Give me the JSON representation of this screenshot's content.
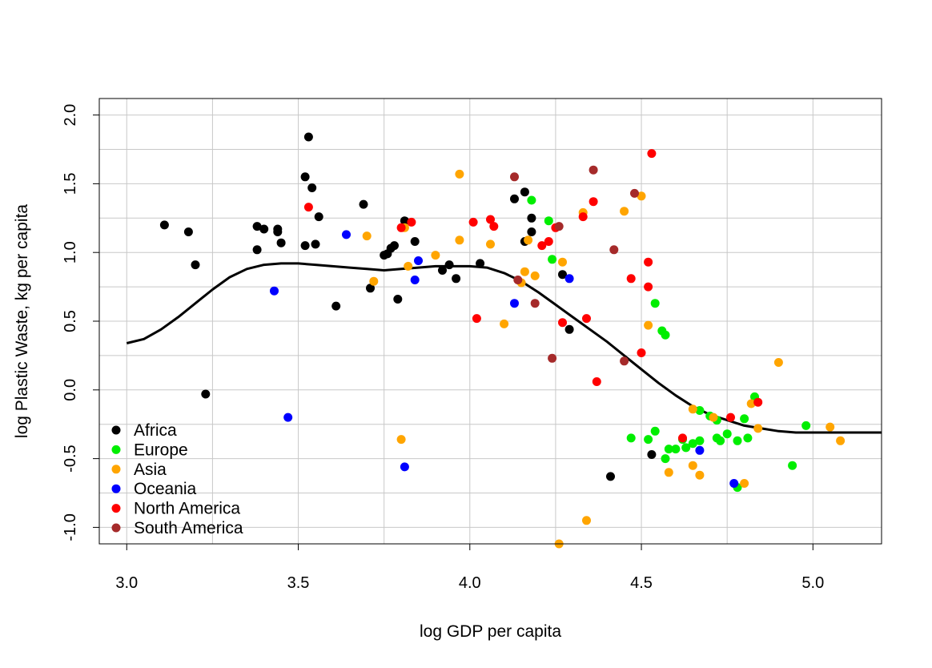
{
  "chart_data": {
    "type": "scatter",
    "title": "",
    "xlabel": "log GDP per capita",
    "ylabel": "log Plastic Waste, kg per capita",
    "xlim": [
      2.92,
      5.2
    ],
    "ylim": [
      -1.12,
      2.12
    ],
    "x_ticks": [
      "3.0",
      "3.5",
      "4.0",
      "4.5",
      "5.0"
    ],
    "y_ticks": [
      "-1.0",
      "-0.5",
      "0.0",
      "0.5",
      "1.0",
      "1.5",
      "2.0"
    ],
    "grid": true,
    "legend_position": "bottom-left",
    "series": [
      {
        "name": "Africa",
        "color": "#000000",
        "points": [
          [
            3.11,
            1.2
          ],
          [
            3.18,
            1.15
          ],
          [
            3.2,
            0.91
          ],
          [
            3.23,
            -0.03
          ],
          [
            3.38,
            1.19
          ],
          [
            3.38,
            1.02
          ],
          [
            3.4,
            1.17
          ],
          [
            3.44,
            1.17
          ],
          [
            3.44,
            1.15
          ],
          [
            3.45,
            1.07
          ],
          [
            3.52,
            1.55
          ],
          [
            3.52,
            1.05
          ],
          [
            3.53,
            1.84
          ],
          [
            3.54,
            1.47
          ],
          [
            3.55,
            1.06
          ],
          [
            3.56,
            1.26
          ],
          [
            3.61,
            0.61
          ],
          [
            3.69,
            1.35
          ],
          [
            3.71,
            0.74
          ],
          [
            3.75,
            0.98
          ],
          [
            3.76,
            0.99
          ],
          [
            3.77,
            1.03
          ],
          [
            3.78,
            1.05
          ],
          [
            3.79,
            0.66
          ],
          [
            3.81,
            1.23
          ],
          [
            3.84,
            1.08
          ],
          [
            3.92,
            0.87
          ],
          [
            3.94,
            0.91
          ],
          [
            3.96,
            0.81
          ],
          [
            4.03,
            0.92
          ],
          [
            4.13,
            1.39
          ],
          [
            4.16,
            1.44
          ],
          [
            4.16,
            1.08
          ],
          [
            4.18,
            1.25
          ],
          [
            4.18,
            1.15
          ],
          [
            4.27,
            0.84
          ],
          [
            4.29,
            0.44
          ],
          [
            4.41,
            -0.63
          ],
          [
            4.53,
            -0.47
          ]
        ]
      },
      {
        "name": "Europe",
        "color": "#00ee00",
        "points": [
          [
            4.18,
            1.38
          ],
          [
            4.23,
            1.23
          ],
          [
            4.24,
            0.95
          ],
          [
            4.47,
            -0.35
          ],
          [
            4.52,
            -0.36
          ],
          [
            4.54,
            -0.3
          ],
          [
            4.54,
            0.63
          ],
          [
            4.56,
            0.43
          ],
          [
            4.57,
            0.4
          ],
          [
            4.57,
            -0.5
          ],
          [
            4.58,
            -0.43
          ],
          [
            4.6,
            -0.43
          ],
          [
            4.62,
            -0.36
          ],
          [
            4.63,
            -0.42
          ],
          [
            4.65,
            -0.39
          ],
          [
            4.67,
            -0.15
          ],
          [
            4.67,
            -0.37
          ],
          [
            4.7,
            -0.19
          ],
          [
            4.72,
            -0.35
          ],
          [
            4.72,
            -0.22
          ],
          [
            4.73,
            -0.37
          ],
          [
            4.75,
            -0.32
          ],
          [
            4.78,
            -0.37
          ],
          [
            4.78,
            -0.71
          ],
          [
            4.8,
            -0.21
          ],
          [
            4.81,
            -0.35
          ],
          [
            4.83,
            -0.05
          ],
          [
            4.94,
            -0.55
          ],
          [
            4.98,
            -0.26
          ]
        ]
      },
      {
        "name": "Asia",
        "color": "#ffa500",
        "points": [
          [
            3.7,
            1.12
          ],
          [
            3.72,
            0.79
          ],
          [
            3.8,
            -0.36
          ],
          [
            3.81,
            1.18
          ],
          [
            3.82,
            0.9
          ],
          [
            3.9,
            0.98
          ],
          [
            3.97,
            1.09
          ],
          [
            3.97,
            1.57
          ],
          [
            4.06,
            1.06
          ],
          [
            4.1,
            0.48
          ],
          [
            4.15,
            0.78
          ],
          [
            4.16,
            0.86
          ],
          [
            4.17,
            1.09
          ],
          [
            4.19,
            0.83
          ],
          [
            4.26,
            -1.12
          ],
          [
            4.27,
            0.93
          ],
          [
            4.33,
            1.29
          ],
          [
            4.34,
            -0.95
          ],
          [
            4.45,
            1.3
          ],
          [
            4.5,
            1.41
          ],
          [
            4.52,
            0.47
          ],
          [
            4.65,
            -0.14
          ],
          [
            4.65,
            -0.55
          ],
          [
            4.67,
            -0.62
          ],
          [
            4.71,
            -0.2
          ],
          [
            4.8,
            -0.68
          ],
          [
            4.82,
            -0.1
          ],
          [
            4.84,
            -0.28
          ],
          [
            4.9,
            0.2
          ],
          [
            5.05,
            -0.27
          ],
          [
            5.08,
            -0.37
          ],
          [
            4.58,
            -0.6
          ]
        ]
      },
      {
        "name": "Oceania",
        "color": "#0000ff",
        "points": [
          [
            3.43,
            0.72
          ],
          [
            3.47,
            -0.2
          ],
          [
            3.64,
            1.13
          ],
          [
            3.81,
            -0.56
          ],
          [
            3.84,
            0.8
          ],
          [
            3.85,
            0.94
          ],
          [
            4.13,
            0.63
          ],
          [
            4.29,
            0.81
          ],
          [
            4.67,
            -0.44
          ],
          [
            4.77,
            -0.68
          ]
        ]
      },
      {
        "name": "North America",
        "color": "#ff0000",
        "points": [
          [
            3.53,
            1.33
          ],
          [
            3.8,
            1.18
          ],
          [
            3.83,
            1.22
          ],
          [
            4.01,
            1.22
          ],
          [
            4.02,
            0.52
          ],
          [
            4.06,
            1.24
          ],
          [
            4.07,
            1.19
          ],
          [
            4.21,
            1.05
          ],
          [
            4.23,
            1.08
          ],
          [
            4.25,
            1.18
          ],
          [
            4.27,
            0.49
          ],
          [
            4.33,
            1.26
          ],
          [
            4.34,
            0.52
          ],
          [
            4.36,
            1.37
          ],
          [
            4.37,
            0.06
          ],
          [
            4.47,
            0.81
          ],
          [
            4.5,
            0.27
          ],
          [
            4.52,
            0.93
          ],
          [
            4.52,
            0.75
          ],
          [
            4.53,
            1.72
          ],
          [
            4.62,
            -0.35
          ],
          [
            4.76,
            -0.2
          ],
          [
            4.84,
            -0.09
          ]
        ]
      },
      {
        "name": "South America",
        "color": "#a52a2a",
        "points": [
          [
            4.13,
            1.55
          ],
          [
            4.14,
            0.8
          ],
          [
            4.19,
            0.63
          ],
          [
            4.24,
            0.23
          ],
          [
            4.26,
            1.19
          ],
          [
            4.36,
            1.6
          ],
          [
            4.42,
            1.02
          ],
          [
            4.45,
            0.21
          ],
          [
            4.48,
            1.43
          ]
        ]
      }
    ],
    "smooth_line": {
      "name": "smoother",
      "color": "#000000",
      "x": [
        3.0,
        3.05,
        3.1,
        3.15,
        3.2,
        3.25,
        3.3,
        3.35,
        3.4,
        3.45,
        3.5,
        3.55,
        3.6,
        3.65,
        3.7,
        3.75,
        3.8,
        3.85,
        3.9,
        3.95,
        4.0,
        4.05,
        4.1,
        4.15,
        4.2,
        4.25,
        4.3,
        4.35,
        4.4,
        4.45,
        4.5,
        4.55,
        4.6,
        4.65,
        4.7,
        4.75,
        4.8,
        4.85,
        4.9,
        4.95,
        5.0,
        5.05,
        5.1,
        5.15,
        5.2
      ],
      "y": [
        0.34,
        0.37,
        0.44,
        0.53,
        0.63,
        0.73,
        0.82,
        0.88,
        0.91,
        0.92,
        0.92,
        0.91,
        0.9,
        0.89,
        0.88,
        0.87,
        0.88,
        0.89,
        0.9,
        0.9,
        0.9,
        0.89,
        0.85,
        0.79,
        0.71,
        0.62,
        0.53,
        0.44,
        0.35,
        0.25,
        0.15,
        0.05,
        -0.04,
        -0.12,
        -0.18,
        -0.22,
        -0.26,
        -0.28,
        -0.3,
        -0.31,
        -0.31,
        -0.31,
        -0.31,
        -0.31,
        -0.31
      ]
    }
  }
}
